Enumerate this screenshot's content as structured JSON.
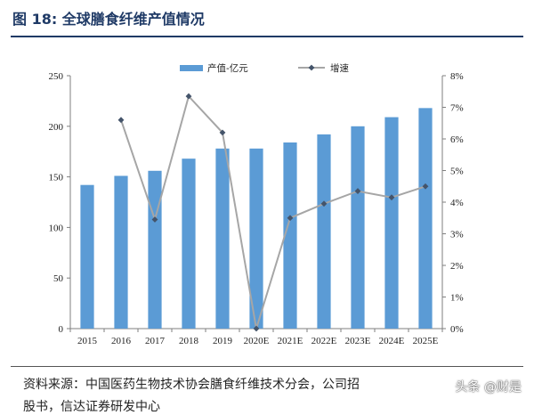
{
  "figure": {
    "title": "图 18: 全球膳食纤维产值情况",
    "source": "资料来源：中国医药生物技术协会膳食纤维技术分会，公司招",
    "source_line2": "股书，信达证券研发中心",
    "watermark": "头条 @财是"
  },
  "chart_data": {
    "type": "bar",
    "categories": [
      "2015",
      "2016",
      "2017",
      "2018",
      "2019",
      "2020E",
      "2021E",
      "2022E",
      "2023E",
      "2024E",
      "2025E"
    ],
    "series": [
      {
        "name": "产值-亿元",
        "type": "bar",
        "axis": "left",
        "color": "#5b9bd5",
        "values": [
          142,
          151,
          156,
          168,
          178,
          178,
          184,
          192,
          200,
          209,
          218
        ]
      },
      {
        "name": "增速",
        "type": "line",
        "axis": "right",
        "color": "#a6a6a6",
        "marker_color": "#44546a",
        "values": [
          null,
          6.6,
          3.45,
          7.35,
          6.2,
          0.0,
          3.5,
          3.95,
          4.35,
          4.15,
          4.5
        ]
      }
    ],
    "yleft": {
      "lim": [
        0,
        250
      ],
      "ticks": [
        "0",
        "50",
        "100",
        "150",
        "200",
        "250"
      ]
    },
    "yright": {
      "lim": [
        0,
        8
      ],
      "ticks": [
        "0%",
        "1%",
        "2%",
        "3%",
        "4%",
        "5%",
        "6%",
        "7%",
        "8%"
      ]
    },
    "grid": false,
    "legend_position": "top"
  }
}
